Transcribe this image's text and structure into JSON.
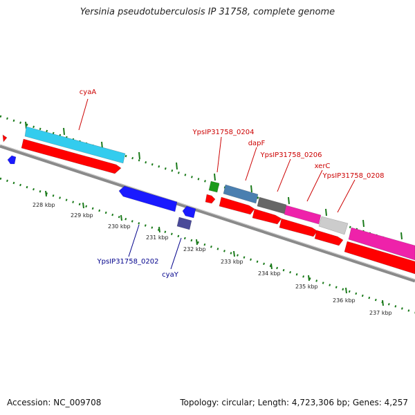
{
  "title": "Yersinia pseudotuberculosis IP 31758, complete genome",
  "footer": {
    "accession": "Accession: NC_009708",
    "summary": "Topology: circular; Length: 4,723,306 bp; Genes: 4,257"
  },
  "colors": {
    "tick": "#1a7a1a",
    "backbone": "#8a8a8a",
    "forward_label": "#cc0000",
    "reverse_label": "#00008b"
  },
  "axis_labels": [
    "228 kbp",
    "229 kbp",
    "230 kbp",
    "231 kbp",
    "232 kbp",
    "233 kbp",
    "234 kbp",
    "235 kbp",
    "236 kbp",
    "237 kbp"
  ],
  "labels": [
    {
      "text": "cyaA",
      "strand": "forward"
    },
    {
      "text": "YpsIP31758_0204",
      "strand": "forward"
    },
    {
      "text": "dapF",
      "strand": "forward"
    },
    {
      "text": "YpsIP31758_0206",
      "strand": "forward"
    },
    {
      "text": "xerC",
      "strand": "forward"
    },
    {
      "text": "YpsIP31758_0208",
      "strand": "forward"
    },
    {
      "text": "YpsIP31758_0202",
      "strand": "reverse"
    },
    {
      "text": "cyaY",
      "strand": "reverse"
    }
  ],
  "features": [
    {
      "track": "cds-forward",
      "color": "#ff0000"
    },
    {
      "track": "gene-forward",
      "color": "#33ccee"
    },
    {
      "track": "cds-forward",
      "color": "#ff0000"
    },
    {
      "track": "cds-reverse",
      "color": "#1a1aff"
    },
    {
      "track": "cds-reverse",
      "color": "#1a1aff"
    },
    {
      "track": "gene-reverse",
      "color": "#1a1aff"
    },
    {
      "track": "gene-reverse",
      "color": "#4a4a99"
    },
    {
      "track": "gene-forward",
      "color": "#1a9a1a"
    },
    {
      "track": "cds-forward",
      "color": "#ff0000"
    },
    {
      "track": "gene-forward",
      "color": "#4a7fb0"
    },
    {
      "track": "cds-forward",
      "color": "#ff0000"
    },
    {
      "track": "gene-forward",
      "color": "#666666"
    },
    {
      "track": "cds-forward",
      "color": "#ff0000"
    },
    {
      "track": "gene-forward",
      "color": "#ee22aa"
    },
    {
      "track": "cds-forward",
      "color": "#ff0000"
    },
    {
      "track": "gene-forward",
      "color": "#cccccc"
    },
    {
      "track": "cds-forward",
      "color": "#ff0000"
    },
    {
      "track": "gene-forward",
      "color": "#ee22aa"
    },
    {
      "track": "cds-forward",
      "color": "#ff0000"
    }
  ]
}
